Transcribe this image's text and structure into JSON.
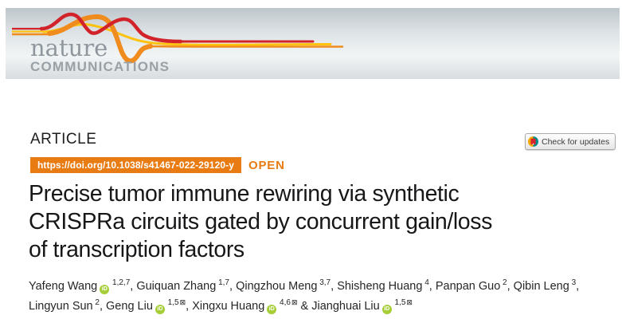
{
  "masthead": {
    "journal_name": "nature",
    "journal_subname": "COMMUNICATIONS"
  },
  "article": {
    "type_label": "ARTICLE",
    "doi": "https://doi.org/10.1038/s41467-022-29120-y",
    "open_label": "OPEN",
    "title_lines": [
      "Precise tumor immune rewiring via synthetic",
      "CRISPRa circuits gated by concurrent gain/loss",
      "of transcription factors"
    ]
  },
  "badge": {
    "label": "Check for updates",
    "icon": "crossmark-icon"
  },
  "authors": [
    {
      "name": "Yafeng Wang",
      "orcid": true,
      "sup": "1,2,7",
      "email": false,
      "sep": ", "
    },
    {
      "name": "Guiquan Zhang",
      "orcid": false,
      "sup": "1,7",
      "email": false,
      "sep": ", "
    },
    {
      "name": "Qingzhou Meng",
      "orcid": false,
      "sup": "3,7",
      "email": false,
      "sep": ", "
    },
    {
      "name": "Shisheng Huang",
      "orcid": false,
      "sup": "4",
      "email": false,
      "sep": ", "
    },
    {
      "name": "Panpan Guo",
      "orcid": false,
      "sup": "2",
      "email": false,
      "sep": ", "
    },
    {
      "name": "Qibin Leng",
      "orcid": false,
      "sup": "3",
      "email": false,
      "sep": ",",
      "break_after": true
    },
    {
      "name": "Lingyun Sun",
      "orcid": false,
      "sup": "2",
      "email": false,
      "sep": ", "
    },
    {
      "name": "Geng Liu",
      "orcid": true,
      "sup": "1,5",
      "email": true,
      "sep": ", "
    },
    {
      "name": "Xingxu Huang",
      "orcid": true,
      "sup": "4,6",
      "email": true,
      "sep": " & "
    },
    {
      "name": "Jianghuai Liu",
      "orcid": true,
      "sup": "1,5",
      "email": true,
      "sep": ""
    }
  ],
  "icons": {
    "orcid": "orcid-icon",
    "email": "email-icon",
    "email_glyph": "⊠",
    "orcid_glyph": "iD"
  },
  "colors": {
    "accent-orange": "#e87b12",
    "orcid-green": "#a6ce39",
    "ribbon-red": "#d2232a",
    "ribbon-orange": "#f08b1d",
    "ribbon-yellow": "#ffc20e",
    "logo-gray": "#8e979d"
  }
}
